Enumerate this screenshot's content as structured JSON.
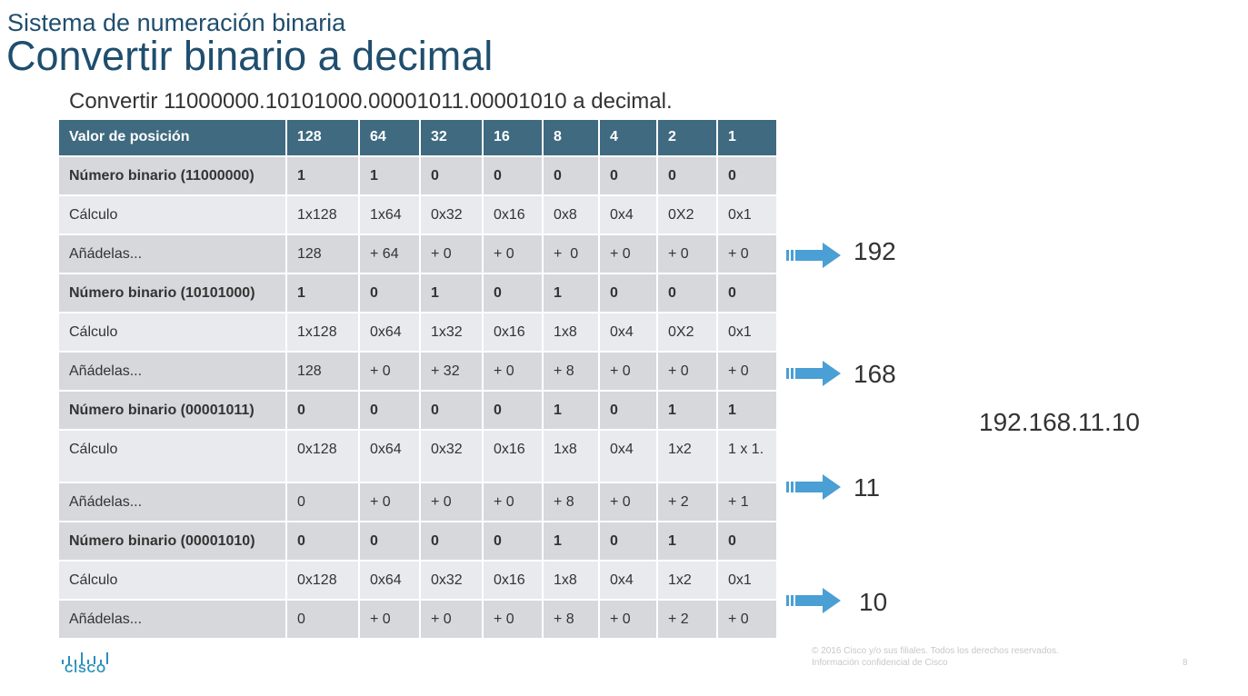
{
  "header": {
    "subtitle": "Sistema de numeración binaria",
    "title": "Convertir binario a decimal"
  },
  "lead": "Convertir 11000000.10101000.00001011.00001010 a decimal.",
  "table": {
    "header": [
      "Valor de posición",
      "128",
      "64",
      "32",
      "16",
      "8",
      "4",
      "2",
      "1"
    ],
    "rows": [
      [
        "Número binario (11000000)",
        "1",
        "1",
        "0",
        "0",
        "0",
        "0",
        "0",
        "0"
      ],
      [
        "Cálculo",
        "1x128",
        "1x64",
        "0x32",
        "0x16",
        "0x8",
        "0x4",
        "0X2",
        "0x1"
      ],
      [
        "Añádelas...",
        "128",
        "+ 64",
        "+ 0",
        "+ 0",
        "+  0",
        "+ 0",
        "+ 0",
        "+ 0"
      ],
      [
        "Número binario (10101000)",
        "1",
        "0",
        "1",
        "0",
        "1",
        "0",
        "0",
        "0"
      ],
      [
        "Cálculo",
        "1x128",
        "0x64",
        "1x32",
        "0x16",
        "1x8",
        "0x4",
        "0X2",
        "0x1"
      ],
      [
        "Añádelas...",
        "128",
        "+ 0",
        "+ 32",
        "+ 0",
        "+ 8",
        "+ 0",
        "+ 0",
        "+ 0"
      ],
      [
        "Número binario (00001011)",
        "0",
        "0",
        "0",
        "0",
        "1",
        "0",
        "1",
        "1"
      ],
      [
        "Cálculo",
        "0x128",
        "0x64",
        "0x32",
        "0x16",
        "1x8",
        "0x4",
        "1x2",
        "1 x 1."
      ],
      [
        "Añádelas...",
        "0",
        "+ 0",
        "+ 0",
        "+ 0",
        "+ 8",
        "+ 0",
        "+ 2",
        "+ 1"
      ],
      [
        "Número binario (00001010)",
        "0",
        "0",
        "0",
        "0",
        "1",
        "0",
        "1",
        "0"
      ],
      [
        "Cálculo",
        "0x128",
        "0x64",
        "0x32",
        "0x16",
        "1x8",
        "0x4",
        "1x2",
        "0x1"
      ],
      [
        "Añádelas...",
        "0",
        "+ 0",
        "+ 0",
        "+ 0",
        "+ 8",
        "+ 0",
        "+ 2",
        "+ 0"
      ]
    ]
  },
  "results": {
    "r1": "192",
    "r2": "168",
    "r3": "11",
    "r4": "10",
    "final": "192.168.11.10"
  },
  "arrow_icon": "right-arrow-icon",
  "arrow_color": "#4a9fd4",
  "logo_text": "CISCO",
  "footer": {
    "copyright": "© 2016 Cisco y/o sus filiales. Todos los derechos reservados.",
    "confidential": "Información confidencial de Cisco",
    "page_number": "8"
  }
}
